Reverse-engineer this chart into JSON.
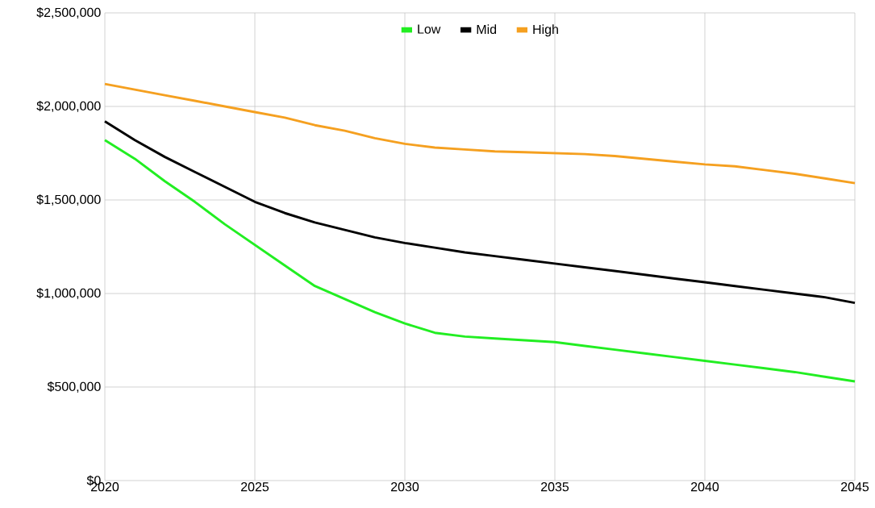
{
  "chart_data": {
    "type": "line",
    "x": [
      2020,
      2021,
      2022,
      2023,
      2024,
      2025,
      2026,
      2027,
      2028,
      2029,
      2030,
      2031,
      2032,
      2033,
      2034,
      2035,
      2036,
      2037,
      2038,
      2039,
      2040,
      2041,
      2042,
      2043,
      2044,
      2045
    ],
    "series": [
      {
        "name": "Low",
        "color": "#22ee22",
        "values": [
          1820000,
          1720000,
          1600000,
          1490000,
          1370000,
          1260000,
          1150000,
          1040000,
          970000,
          900000,
          840000,
          790000,
          770000,
          760000,
          750000,
          740000,
          720000,
          700000,
          680000,
          660000,
          640000,
          620000,
          600000,
          580000,
          555000,
          530000
        ]
      },
      {
        "name": "Mid",
        "color": "#000000",
        "values": [
          1920000,
          1820000,
          1730000,
          1650000,
          1570000,
          1490000,
          1430000,
          1380000,
          1340000,
          1300000,
          1270000,
          1245000,
          1220000,
          1200000,
          1180000,
          1160000,
          1140000,
          1120000,
          1100000,
          1080000,
          1060000,
          1040000,
          1020000,
          1000000,
          980000,
          950000
        ]
      },
      {
        "name": "High",
        "color": "#f5a020",
        "values": [
          2120000,
          2090000,
          2060000,
          2030000,
          2000000,
          1970000,
          1940000,
          1900000,
          1870000,
          1830000,
          1800000,
          1780000,
          1770000,
          1760000,
          1755000,
          1750000,
          1745000,
          1735000,
          1720000,
          1705000,
          1690000,
          1680000,
          1660000,
          1640000,
          1615000,
          1590000
        ]
      }
    ],
    "xlim": [
      2020,
      2045
    ],
    "xticks": [
      2020,
      2025,
      2030,
      2035,
      2040,
      2045
    ],
    "ylim": [
      0,
      2500000
    ],
    "yticks": [
      {
        "value": 0,
        "label": "$0"
      },
      {
        "value": 500000,
        "label": "$500,000"
      },
      {
        "value": 1000000,
        "label": "$1,000,000"
      },
      {
        "value": 1500000,
        "label": "$1,500,000"
      },
      {
        "value": 2000000,
        "label": "$2,000,000"
      },
      {
        "value": 2500000,
        "label": "$2,500,000"
      }
    ],
    "grid": true,
    "legend": "top",
    "marker": "none",
    "line_style": "solid"
  }
}
